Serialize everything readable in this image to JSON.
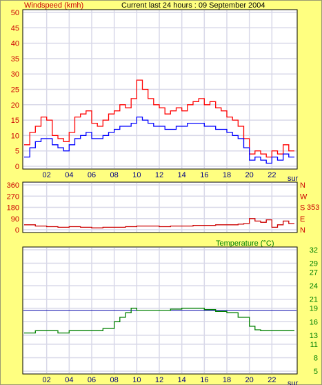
{
  "colors": {
    "background": "#ffff80",
    "plot_bg": "#ffffff",
    "grid": "#d8d8e8",
    "gust": "#ff0000",
    "average": "#0000ff",
    "direction": "#cc0000",
    "temperature": "#008000",
    "reference_line": "#0000aa",
    "axis_text_left": "#cc0000",
    "axis_text_right": "#008000"
  },
  "chart_data": [
    {
      "id": "windspeed",
      "type": "line",
      "title": "Windspeed (kmh)",
      "subtitle": "Current last 24 hours : 09 September 2004",
      "x_tick_labels": [
        "02",
        "04",
        "06",
        "08",
        "10",
        "12",
        "14",
        "16",
        "18",
        "20",
        "22"
      ],
      "x_end_label": "sur",
      "xlim": [
        0,
        24
      ],
      "ylim": [
        0,
        50
      ],
      "y_ticks": [
        0,
        5,
        10,
        15,
        20,
        25,
        30,
        35,
        40,
        45,
        50
      ],
      "grid": true,
      "series": [
        {
          "name": "gust",
          "color": "#ff0000",
          "x": [
            0,
            0.5,
            1,
            1.5,
            2,
            2.5,
            3,
            3.5,
            4,
            4.5,
            5,
            5.5,
            6,
            6.5,
            7,
            7.5,
            8,
            8.5,
            9,
            9.5,
            10,
            10.5,
            11,
            11.5,
            12,
            12.5,
            13,
            13.5,
            14,
            14.5,
            15,
            15.5,
            16,
            16.5,
            17,
            17.5,
            18,
            18.5,
            19,
            19.5,
            20,
            20.5,
            21,
            21.5,
            22,
            22.5,
            23,
            23.5
          ],
          "y": [
            7,
            11,
            13,
            16,
            15,
            10,
            9,
            8,
            11,
            16,
            17,
            18,
            14,
            13,
            15,
            17,
            18,
            20,
            19,
            22,
            28,
            25,
            22,
            20,
            19,
            17,
            18,
            19,
            18,
            20,
            21,
            22,
            20,
            21,
            19,
            18,
            16,
            15,
            13,
            9,
            4,
            5,
            4,
            3,
            5,
            4,
            7,
            5
          ]
        },
        {
          "name": "average",
          "color": "#0000ff",
          "x": [
            0,
            0.5,
            1,
            1.5,
            2,
            2.5,
            3,
            3.5,
            4,
            4.5,
            5,
            5.5,
            6,
            6.5,
            7,
            7.5,
            8,
            8.5,
            9,
            9.5,
            10,
            10.5,
            11,
            11.5,
            12,
            12.5,
            13,
            13.5,
            14,
            14.5,
            15,
            15.5,
            16,
            16.5,
            17,
            17.5,
            18,
            18.5,
            19,
            19.5,
            20,
            20.5,
            21,
            21.5,
            22,
            22.5,
            23,
            23.5
          ],
          "y": [
            3,
            6,
            8,
            9,
            9,
            7,
            6,
            5,
            7,
            9,
            10,
            11,
            9,
            9,
            10,
            11,
            12,
            13,
            13,
            14,
            16,
            15,
            14,
            13,
            13,
            12,
            12,
            13,
            13,
            14,
            14,
            14,
            13,
            13,
            12,
            12,
            11,
            10,
            9,
            6,
            2,
            3,
            2,
            1,
            3,
            2,
            4,
            3
          ]
        }
      ]
    },
    {
      "id": "direction",
      "type": "line",
      "y_ticks": [
        0,
        90,
        180,
        270,
        360
      ],
      "right_labels": [
        "N",
        "W",
        "S",
        "E",
        "N"
      ],
      "current_value": "353",
      "xlim": [
        0,
        24
      ],
      "ylim": [
        0,
        360
      ],
      "grid": true,
      "series": [
        {
          "name": "direction",
          "color": "#cc0000",
          "x": [
            0,
            1,
            2,
            3,
            4,
            5,
            6,
            7,
            8,
            9,
            10,
            11,
            12,
            13,
            14,
            15,
            16,
            17,
            18,
            19,
            19.5,
            20,
            20.5,
            21,
            21.5,
            22,
            22.5,
            23,
            23.5
          ],
          "y": [
            40,
            30,
            25,
            20,
            25,
            20,
            15,
            20,
            20,
            25,
            30,
            30,
            25,
            30,
            30,
            35,
            35,
            40,
            40,
            45,
            50,
            90,
            70,
            60,
            80,
            20,
            40,
            70,
            50
          ]
        }
      ]
    },
    {
      "id": "temperature",
      "type": "line",
      "title": "Temperature (°C)",
      "x_tick_labels": [
        "02",
        "04",
        "06",
        "08",
        "10",
        "12",
        "14",
        "16",
        "18",
        "20",
        "22"
      ],
      "x_end_label": "sur",
      "xlim": [
        0,
        24
      ],
      "ylim": [
        5,
        32
      ],
      "y_ticks": [
        5,
        8,
        11,
        13,
        16,
        19,
        21,
        24,
        27,
        29,
        32
      ],
      "reference_line": 18.5,
      "grid": true,
      "series": [
        {
          "name": "temperature",
          "color": "#008000",
          "x": [
            0,
            1,
            2,
            3,
            4,
            5,
            6,
            7,
            8,
            8.5,
            9,
            9.5,
            10,
            11,
            12,
            13,
            14,
            15,
            16,
            17,
            18,
            19,
            20,
            20.5,
            21,
            22,
            23,
            23.5
          ],
          "y": [
            13.5,
            14,
            14,
            13.5,
            14,
            14,
            14,
            14.5,
            16,
            17,
            18,
            19,
            18.5,
            18.5,
            18.5,
            18.8,
            19,
            19,
            18.7,
            18.3,
            18,
            17,
            15,
            14.2,
            14,
            14,
            14,
            14
          ]
        }
      ]
    }
  ]
}
